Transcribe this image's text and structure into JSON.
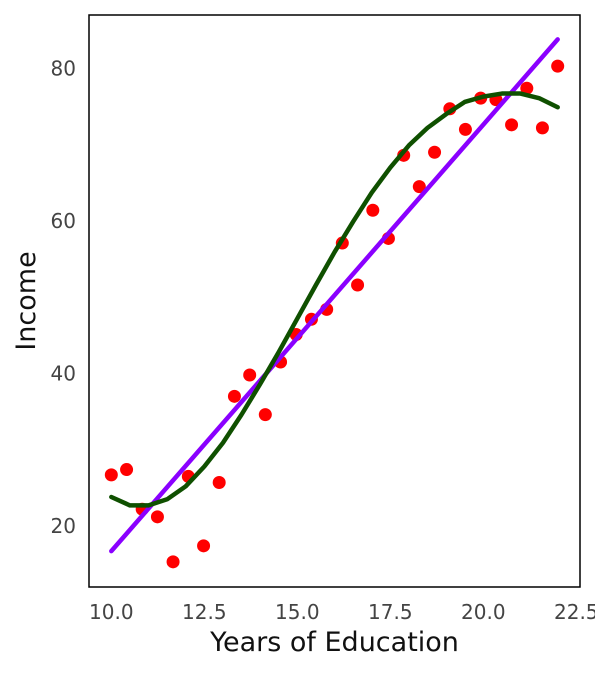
{
  "chart_data": {
    "type": "scatter",
    "xlabel": "Years of Education",
    "ylabel": "Income",
    "xlim": [
      9.4,
      22.6
    ],
    "ylim": [
      12,
      87
    ],
    "xticks": [
      10.0,
      12.5,
      15.0,
      17.5,
      20.0,
      22.5
    ],
    "xtick_labels": [
      "10.0",
      "12.5",
      "15.0",
      "17.5",
      "20.0",
      "22.5"
    ],
    "yticks": [
      20,
      40,
      60,
      80
    ],
    "ytick_labels": [
      "20",
      "40",
      "60",
      "80"
    ],
    "grid": false,
    "colors": {
      "points": "#ff0000",
      "linear_fit": "#8a00ff",
      "cubic_fit": "#0f5000",
      "axis_text": "#444444",
      "label_text": "#111111"
    },
    "series": [
      {
        "kind": "points",
        "x": [
          10.0,
          10.41,
          10.83,
          11.24,
          11.66,
          12.07,
          12.48,
          12.9,
          13.31,
          13.72,
          14.14,
          14.55,
          14.97,
          15.38,
          15.79,
          16.21,
          16.62,
          17.03,
          17.45,
          17.86,
          18.28,
          18.69,
          19.1,
          19.52,
          19.93,
          20.34,
          20.76,
          21.17,
          21.59,
          22.0
        ],
        "y": [
          26.7,
          27.4,
          22.2,
          21.2,
          15.3,
          26.5,
          17.4,
          25.7,
          37.0,
          39.8,
          34.6,
          41.5,
          45.1,
          47.1,
          48.4,
          57.1,
          51.6,
          61.4,
          57.7,
          68.6,
          64.5,
          69.0,
          74.7,
          72.0,
          76.1,
          75.9,
          72.6,
          77.4,
          72.2,
          80.3
        ]
      },
      {
        "kind": "line",
        "x": [
          10.0,
          22.0
        ],
        "y": [
          16.7,
          83.8
        ]
      },
      {
        "kind": "curve",
        "x": [
          10.0,
          10.5,
          11.0,
          11.5,
          12.0,
          12.5,
          13.0,
          13.5,
          14.0,
          14.5,
          15.0,
          15.5,
          16.0,
          16.5,
          17.0,
          17.5,
          18.0,
          18.5,
          19.0,
          19.5,
          20.0,
          20.5,
          21.0,
          21.5,
          22.0
        ],
        "y": [
          23.8,
          22.7,
          22.7,
          23.5,
          25.2,
          27.8,
          30.9,
          34.6,
          38.6,
          42.8,
          47.2,
          51.6,
          55.9,
          59.9,
          63.7,
          67.0,
          69.9,
          72.2,
          74.0,
          75.6,
          76.3,
          76.7,
          76.7,
          76.1,
          74.9
        ]
      }
    ]
  }
}
